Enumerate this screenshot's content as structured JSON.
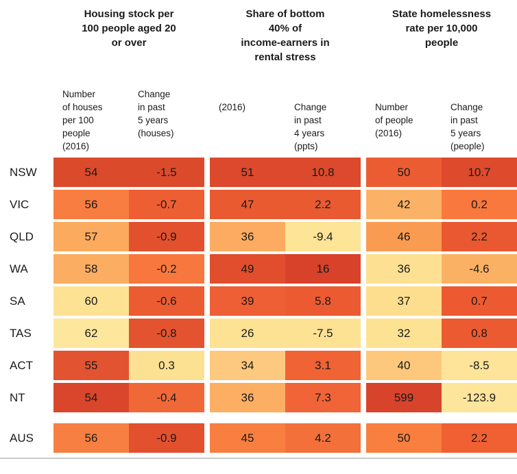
{
  "palette": {
    "lowest": "#fde79d",
    "highest": "#d8422a"
  },
  "table": {
    "groups": [
      {
        "title": "Housing stock per\n100 people aged 20\nor over",
        "subcols": [
          "Number\nof houses\nper 100\npeople\n(2016)",
          "Change\nin past\n5 years\n(houses)"
        ]
      },
      {
        "title": "Share of bottom\n40% of\nincome-earners in\nrental stress",
        "subcols": [
          "(2016)",
          "Change\nin past\n4 years\n(ppts)"
        ]
      },
      {
        "title": "State homelessness\nrate per 10,000\npeople",
        "subcols": [
          "Number\nof people\n(2016)",
          "Change\nin past\n5 years\n(people)"
        ]
      }
    ],
    "rows": [
      {
        "label": "NSW",
        "cells": [
          {
            "v": "54",
            "c": "#dc4a2c"
          },
          {
            "v": "-1.5",
            "c": "#dc4a2c"
          },
          {
            "v": "51",
            "c": "#dc492c"
          },
          {
            "v": "10.8",
            "c": "#dc492c"
          },
          {
            "v": "50",
            "c": "#ec5c33"
          },
          {
            "v": "10.7",
            "c": "#dd4a2c"
          }
        ]
      },
      {
        "label": "VIC",
        "cells": [
          {
            "v": "56",
            "c": "#f87d41"
          },
          {
            "v": "-0.7",
            "c": "#ee5e33"
          },
          {
            "v": "47",
            "c": "#ea5a31"
          },
          {
            "v": "2.2",
            "c": "#ea5a31"
          },
          {
            "v": "42",
            "c": "#fcb266"
          },
          {
            "v": "0.2",
            "c": "#f8783e"
          }
        ]
      },
      {
        "label": "QLD",
        "cells": [
          {
            "v": "57",
            "c": "#fcaa5e"
          },
          {
            "v": "-0.9",
            "c": "#e2502e"
          },
          {
            "v": "36",
            "c": "#fcab60"
          },
          {
            "v": "-9.4",
            "c": "#fde496"
          },
          {
            "v": "46",
            "c": "#fa9b52"
          },
          {
            "v": "2.2",
            "c": "#e95831"
          }
        ]
      },
      {
        "label": "WA",
        "cells": [
          {
            "v": "58",
            "c": "#fbad62"
          },
          {
            "v": "-0.2",
            "c": "#f8773e"
          },
          {
            "v": "49",
            "c": "#e04e2d"
          },
          {
            "v": "16",
            "c": "#d8422a"
          },
          {
            "v": "36",
            "c": "#fde092"
          },
          {
            "v": "-4.6",
            "c": "#fbb164"
          }
        ]
      },
      {
        "label": "SA",
        "cells": [
          {
            "v": "60",
            "c": "#fde294"
          },
          {
            "v": "-0.6",
            "c": "#ec5c32"
          },
          {
            "v": "39",
            "c": "#ee5f35"
          },
          {
            "v": "5.8",
            "c": "#ec5a31"
          },
          {
            "v": "37",
            "c": "#fdde8e"
          },
          {
            "v": "0.7",
            "c": "#ed5a31"
          }
        ]
      },
      {
        "label": "TAS",
        "cells": [
          {
            "v": "62",
            "c": "#fde79d"
          },
          {
            "v": "-0.8",
            "c": "#e4532f"
          },
          {
            "v": "26",
            "c": "#fde294"
          },
          {
            "v": "-7.5",
            "c": "#fde294"
          },
          {
            "v": "32",
            "c": "#fde294"
          },
          {
            "v": "0.8",
            "c": "#ec5a31"
          }
        ]
      },
      {
        "label": "ACT",
        "cells": [
          {
            "v": "55",
            "c": "#e25331"
          },
          {
            "v": "0.3",
            "c": "#fde192"
          },
          {
            "v": "34",
            "c": "#fdc97e"
          },
          {
            "v": "3.1",
            "c": "#f06335"
          },
          {
            "v": "40",
            "c": "#fdc87c"
          },
          {
            "v": "-8.5",
            "c": "#fde499"
          }
        ]
      },
      {
        "label": "NT",
        "cells": [
          {
            "v": "54",
            "c": "#da462b"
          },
          {
            "v": "-0.4",
            "c": "#f16838"
          },
          {
            "v": "36",
            "c": "#fcae63"
          },
          {
            "v": "7.3",
            "c": "#f06437"
          },
          {
            "v": "599",
            "c": "#d8432c"
          },
          {
            "v": "-123.9",
            "c": "#fde59b"
          }
        ]
      },
      {
        "label": "AUS",
        "cells": [
          {
            "v": "56",
            "c": "#f87f42"
          },
          {
            "v": "-0.9",
            "c": "#e2502e"
          },
          {
            "v": "45",
            "c": "#f87f40"
          },
          {
            "v": "4.2",
            "c": "#f3703a"
          },
          {
            "v": "50",
            "c": "#f87f3e"
          },
          {
            "v": "2.2",
            "c": "#f06033"
          }
        ]
      }
    ]
  },
  "chart_data": {
    "type": "heatmap",
    "rows": [
      "NSW",
      "VIC",
      "QLD",
      "WA",
      "SA",
      "TAS",
      "ACT",
      "NT",
      "AUS"
    ],
    "column_groups": [
      "Housing stock per 100 people aged 20 or over",
      "Share of bottom 40% of income-earners in rental stress",
      "State homelessness rate per 10,000 people"
    ],
    "columns": [
      "Number of houses per 100 people (2016)",
      "Change in past 5 years (houses)",
      "(2016)",
      "Change in past 4 years (ppts)",
      "Number of people (2016)",
      "Change in past 5 years (people)"
    ],
    "values": [
      [
        54,
        -1.5,
        51,
        10.8,
        50,
        10.7
      ],
      [
        56,
        -0.7,
        47,
        2.2,
        42,
        0.2
      ],
      [
        57,
        -0.9,
        36,
        -9.4,
        46,
        2.2
      ],
      [
        58,
        -0.2,
        49,
        16,
        36,
        -4.6
      ],
      [
        60,
        -0.6,
        39,
        5.8,
        37,
        0.7
      ],
      [
        62,
        -0.8,
        26,
        -7.5,
        32,
        0.8
      ],
      [
        55,
        0.3,
        34,
        3.1,
        40,
        -8.5
      ],
      [
        54,
        -0.4,
        36,
        7.3,
        599,
        -123.9
      ],
      [
        56,
        -0.9,
        45,
        4.2,
        50,
        2.2
      ]
    ],
    "legend_position": "none",
    "grid": false
  }
}
